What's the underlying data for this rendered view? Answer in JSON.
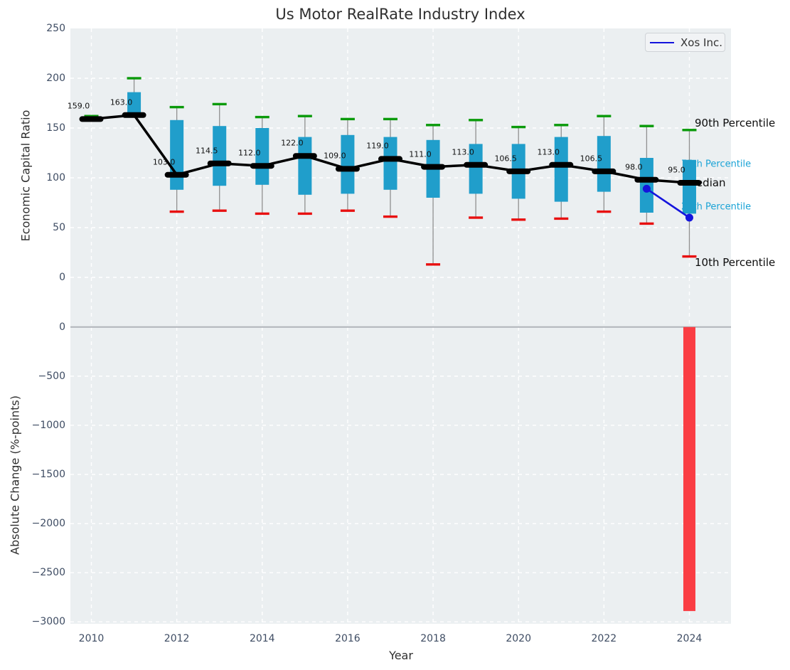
{
  "title": "Us Motor RealRate Industry Index",
  "chart_data": [
    {
      "type": "boxplot",
      "panel": "top",
      "title": "Us Motor RealRate Industry Index",
      "ylabel": "Economic Capital Ratio",
      "ylim": [
        -46,
        250
      ],
      "yticks": [
        250,
        200,
        150,
        100,
        50,
        0
      ],
      "grid": true,
      "legend": {
        "label": "Xos Inc.",
        "position": "upper right",
        "color": "#1414dd"
      },
      "years": [
        2010,
        2011,
        2012,
        2013,
        2014,
        2015,
        2016,
        2017,
        2018,
        2019,
        2020,
        2021,
        2022,
        2023,
        2024
      ],
      "boxes": {
        "p10": [
          159,
          163,
          66,
          67,
          64,
          64,
          67,
          61,
          13,
          60,
          58,
          59,
          66,
          54,
          21
        ],
        "q1": [
          159,
          163,
          88,
          92,
          93,
          83,
          84,
          88,
          80,
          84,
          79,
          76,
          86,
          65,
          64
        ],
        "median": [
          159,
          163,
          103,
          114.5,
          112,
          122,
          109,
          119,
          111,
          113,
          106.5,
          113,
          106.5,
          98,
          95
        ],
        "q3": [
          159,
          186,
          158,
          152,
          150,
          141,
          143,
          141,
          138,
          134,
          134,
          141,
          142,
          120,
          118
        ],
        "p90": [
          162,
          200,
          171,
          174,
          161,
          162,
          159,
          159,
          153,
          158,
          151,
          153,
          162,
          152,
          148
        ]
      },
      "median_labels": [
        "159.0",
        "163.0",
        "103.0",
        "114.5",
        "112.0",
        "122.0",
        "109.0",
        "119.0",
        "111.0",
        "113.0",
        "106.5",
        "113.0",
        "106.5",
        "98.0",
        "95.0"
      ],
      "series": [
        {
          "name": "Xos Inc.",
          "x": [
            2023,
            2024
          ],
          "y": [
            89,
            60
          ],
          "color": "#1414dd"
        }
      ],
      "right_labels": {
        "p90": "90th Percentile",
        "p75": "75th Percentile",
        "median": "Median",
        "p25": "25th Percentile",
        "p10": "10th Percentile"
      },
      "colors": {
        "box_fill": "#209ecb",
        "p90_cap": "#0a9a0a",
        "p10_cap": "#e81010",
        "whisker": "#909090",
        "median_line": "#000000",
        "background": "#ebeff1",
        "gridline": "#ffffff"
      }
    },
    {
      "type": "bar",
      "panel": "bottom",
      "ylabel": "Absolute Change (%-points)",
      "xlabel": "Year",
      "ylim": [
        -3020,
        35
      ],
      "yticks": [
        0,
        -500,
        -1000,
        -1500,
        -2000,
        -2500,
        -3000
      ],
      "xticks": [
        2010,
        2012,
        2014,
        2016,
        2018,
        2020,
        2022,
        2024
      ],
      "categories": [
        2024
      ],
      "values": [
        -2890
      ],
      "bar_color": "#fa3d43",
      "zero_line_color": "#b0b4ba"
    }
  ]
}
